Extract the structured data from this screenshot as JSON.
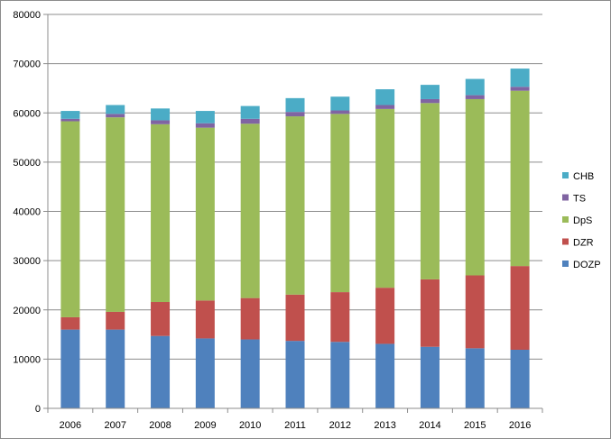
{
  "chart_data": {
    "type": "bar",
    "stacked": true,
    "title": "",
    "xlabel": "",
    "ylabel": "",
    "categories": [
      "2006",
      "2007",
      "2008",
      "2009",
      "2010",
      "2011",
      "2012",
      "2013",
      "2014",
      "2015",
      "2016"
    ],
    "ylim": [
      0,
      80000
    ],
    "yticks": [
      "0",
      "10000",
      "20000",
      "30000",
      "40000",
      "50000",
      "60000",
      "70000",
      "80000"
    ],
    "ytick_values": [
      0,
      10000,
      20000,
      30000,
      40000,
      50000,
      60000,
      70000,
      80000
    ],
    "grid": "horizontal",
    "legend_position": "right",
    "series": [
      {
        "name": "DOZP",
        "color": "#4f81bd",
        "values": [
          16000,
          16000,
          14700,
          14200,
          14000,
          13700,
          13500,
          13100,
          12500,
          12200,
          11900
        ]
      },
      {
        "name": "DZR",
        "color": "#c0504d",
        "values": [
          2500,
          3600,
          6900,
          7700,
          8400,
          9400,
          10100,
          11400,
          13700,
          14800,
          17000
        ]
      },
      {
        "name": "DpS",
        "color": "#9bbb59",
        "values": [
          39800,
          39500,
          36100,
          35100,
          35400,
          36200,
          36200,
          36300,
          35800,
          35800,
          35600
        ]
      },
      {
        "name": "TS",
        "color": "#8064a2",
        "values": [
          500,
          700,
          800,
          900,
          1000,
          900,
          700,
          800,
          800,
          800,
          800
        ]
      },
      {
        "name": "CHB",
        "color": "#4bacc6",
        "values": [
          1600,
          1800,
          2400,
          2500,
          2600,
          2800,
          2800,
          3200,
          2900,
          3300,
          3700
        ]
      }
    ]
  }
}
